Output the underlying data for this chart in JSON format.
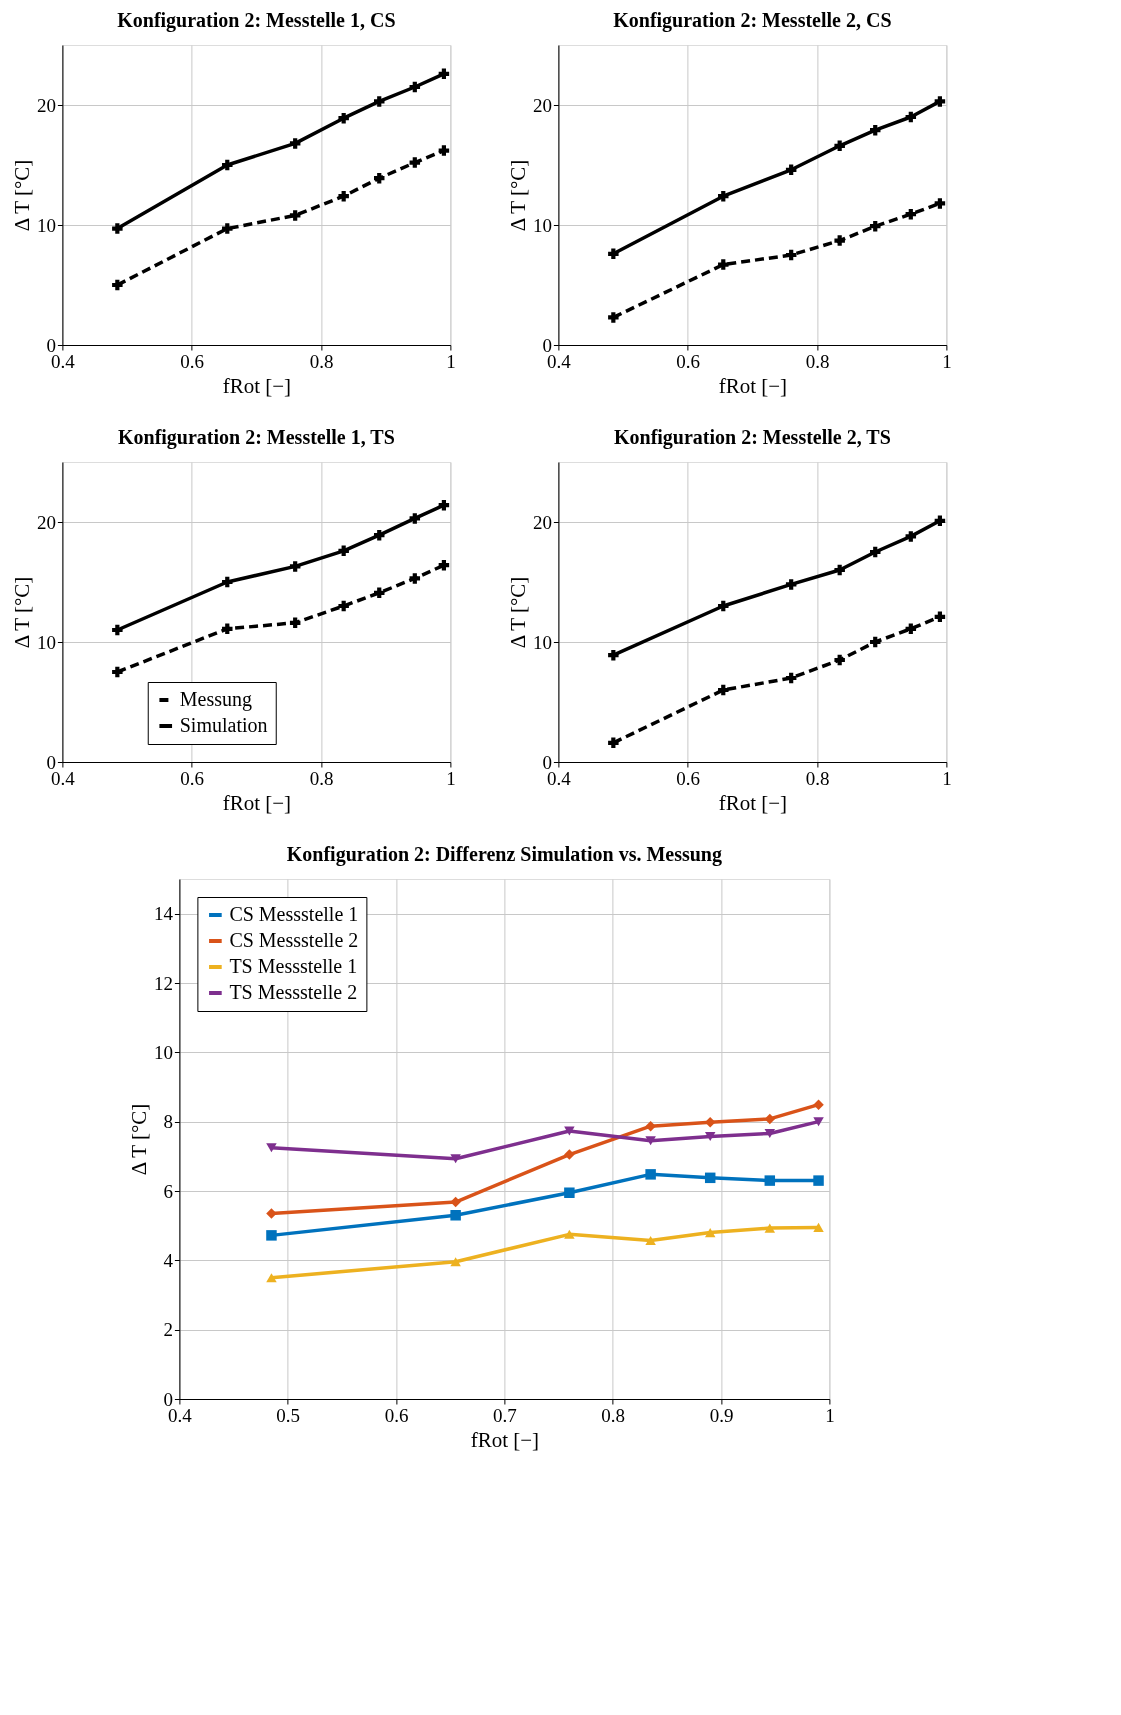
{
  "chart_data": [
    {
      "type": "line",
      "title": "Konfiguration 2: Messtelle 1, CS",
      "xlabel": "fRot [−]",
      "ylabel": "Δ T [°C]",
      "xlim": [
        0.4,
        1
      ],
      "xticks": [
        0.4,
        0.6,
        0.8,
        1
      ],
      "ylim": [
        0,
        25
      ],
      "yticks": [
        0,
        10,
        20
      ],
      "grid": true,
      "legend": false,
      "marker": "cross",
      "x": [
        0.485,
        0.655,
        0.76,
        0.835,
        0.89,
        0.945,
        0.99
      ],
      "series": [
        {
          "color": "#000000",
          "line_style": "dashed",
          "values": [
            5.0,
            9.7,
            10.8,
            12.4,
            13.9,
            15.2,
            16.2
          ]
        },
        {
          "color": "#000000",
          "line_style": "solid",
          "values": [
            9.7,
            15.0,
            16.8,
            18.9,
            20.3,
            21.5,
            22.6
          ]
        }
      ]
    },
    {
      "type": "line",
      "title": "Konfiguration 2: Messtelle 2, CS",
      "xlabel": "fRot [−]",
      "ylabel": "Δ T [°C]",
      "xlim": [
        0.4,
        1
      ],
      "xticks": [
        0.4,
        0.6,
        0.8,
        1
      ],
      "ylim": [
        0,
        25
      ],
      "yticks": [
        0,
        10,
        20
      ],
      "grid": true,
      "legend": false,
      "marker": "cross",
      "x": [
        0.485,
        0.655,
        0.76,
        0.835,
        0.89,
        0.945,
        0.99
      ],
      "series": [
        {
          "color": "#000000",
          "line_style": "dashed",
          "values": [
            2.3,
            6.7,
            7.5,
            8.7,
            9.9,
            10.9,
            11.8
          ]
        },
        {
          "color": "#000000",
          "line_style": "solid",
          "values": [
            7.6,
            12.4,
            14.6,
            16.6,
            17.9,
            19.0,
            20.3
          ]
        }
      ]
    },
    {
      "type": "line",
      "title": "Konfiguration 2: Messtelle 1, TS",
      "xlabel": "fRot [−]",
      "ylabel": "Δ T [°C]",
      "xlim": [
        0.4,
        1
      ],
      "xticks": [
        0.4,
        0.6,
        0.8,
        1
      ],
      "ylim": [
        0,
        25
      ],
      "yticks": [
        0,
        10,
        20
      ],
      "grid": true,
      "legend": "bottom",
      "marker": "cross",
      "x": [
        0.485,
        0.655,
        0.76,
        0.835,
        0.89,
        0.945,
        0.99
      ],
      "series": [
        {
          "name": "Messung",
          "color": "#000000",
          "line_style": "dashed",
          "values": [
            7.5,
            11.1,
            11.6,
            13.0,
            14.1,
            15.3,
            16.4
          ]
        },
        {
          "name": "Simulation",
          "color": "#000000",
          "line_style": "solid",
          "values": [
            11.0,
            15.0,
            16.3,
            17.6,
            18.9,
            20.3,
            21.4
          ]
        }
      ]
    },
    {
      "type": "line",
      "title": "Konfiguration 2: Messtelle 2, TS",
      "xlabel": "fRot [−]",
      "ylabel": "Δ T [°C]",
      "xlim": [
        0.4,
        1
      ],
      "xticks": [
        0.4,
        0.6,
        0.8,
        1
      ],
      "ylim": [
        0,
        25
      ],
      "yticks": [
        0,
        10,
        20
      ],
      "grid": true,
      "legend": false,
      "marker": "cross",
      "x": [
        0.485,
        0.655,
        0.76,
        0.835,
        0.89,
        0.945,
        0.99
      ],
      "series": [
        {
          "color": "#000000",
          "line_style": "dashed",
          "values": [
            1.6,
            6.0,
            7.0,
            8.5,
            10.0,
            11.1,
            12.1
          ]
        },
        {
          "color": "#000000",
          "line_style": "solid",
          "values": [
            8.9,
            13.0,
            14.8,
            16.0,
            17.5,
            18.8,
            20.1
          ]
        }
      ]
    },
    {
      "type": "line",
      "title": "Konfiguration 2: Differenz Simulation vs. Messung",
      "xlabel": "fRot [−]",
      "ylabel": "Δ T [°C]",
      "xlim": [
        0.4,
        1
      ],
      "xticks": [
        0.4,
        0.5,
        0.6,
        0.7,
        0.8,
        0.9,
        1
      ],
      "ylim": [
        0,
        15
      ],
      "yticks": [
        0,
        2,
        4,
        6,
        8,
        10,
        12,
        14
      ],
      "grid": true,
      "legend": "top left",
      "line_style": "solid",
      "x": [
        0.485,
        0.655,
        0.76,
        0.835,
        0.89,
        0.945,
        0.99
      ],
      "series": [
        {
          "name": "CS Messstelle 1",
          "color": "#0072bd",
          "marker": "square",
          "values": [
            4.72,
            5.3,
            5.95,
            6.48,
            6.38,
            6.3,
            6.3
          ]
        },
        {
          "name": "CS Messstelle 2",
          "color": "#d95319",
          "marker": "diamond",
          "values": [
            5.35,
            5.68,
            7.05,
            7.87,
            7.98,
            8.08,
            8.49
          ]
        },
        {
          "name": "TS Messstelle 1",
          "color": "#edb120",
          "marker": "triangle",
          "values": [
            3.5,
            3.96,
            4.75,
            4.57,
            4.8,
            4.93,
            4.95
          ]
        },
        {
          "name": "TS Messstelle 2",
          "color": "#7e2f8e",
          "marker": "triangle-down",
          "values": [
            7.25,
            6.93,
            7.73,
            7.45,
            7.57,
            7.66,
            8.0
          ]
        }
      ]
    }
  ]
}
